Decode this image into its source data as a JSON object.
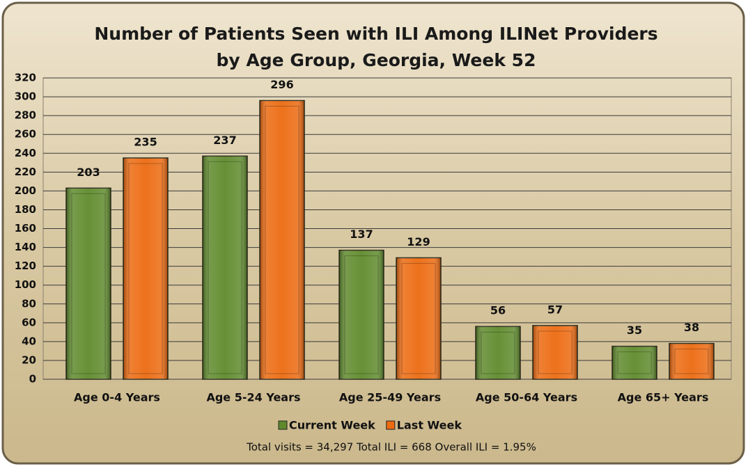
{
  "chart_data": {
    "type": "bar",
    "title": "Number of Patients Seen with ILI Among ILINet Providers by Age Group, Georgia, Week 52",
    "categories": [
      "Age 0-4 Years",
      "Age 5-24 Years",
      "Age 25-49 Years",
      "Age 50-64 Years",
      "Age 65+ Years"
    ],
    "series": [
      {
        "name": "Current Week",
        "color": "#5f8a2c",
        "values": [
          203,
          237,
          137,
          56,
          35
        ]
      },
      {
        "name": "Last Week",
        "color": "#ec6a10",
        "values": [
          235,
          296,
          129,
          57,
          38
        ]
      }
    ],
    "ylim": [
      0,
      320
    ],
    "yticks": [
      0,
      20,
      40,
      60,
      80,
      100,
      120,
      140,
      160,
      180,
      200,
      220,
      240,
      260,
      280,
      300,
      320
    ],
    "grid": true,
    "legend": "bottom",
    "annotation": "Total visits = 34,297 Total ILI = 668 Overall ILI = 1.95%"
  }
}
